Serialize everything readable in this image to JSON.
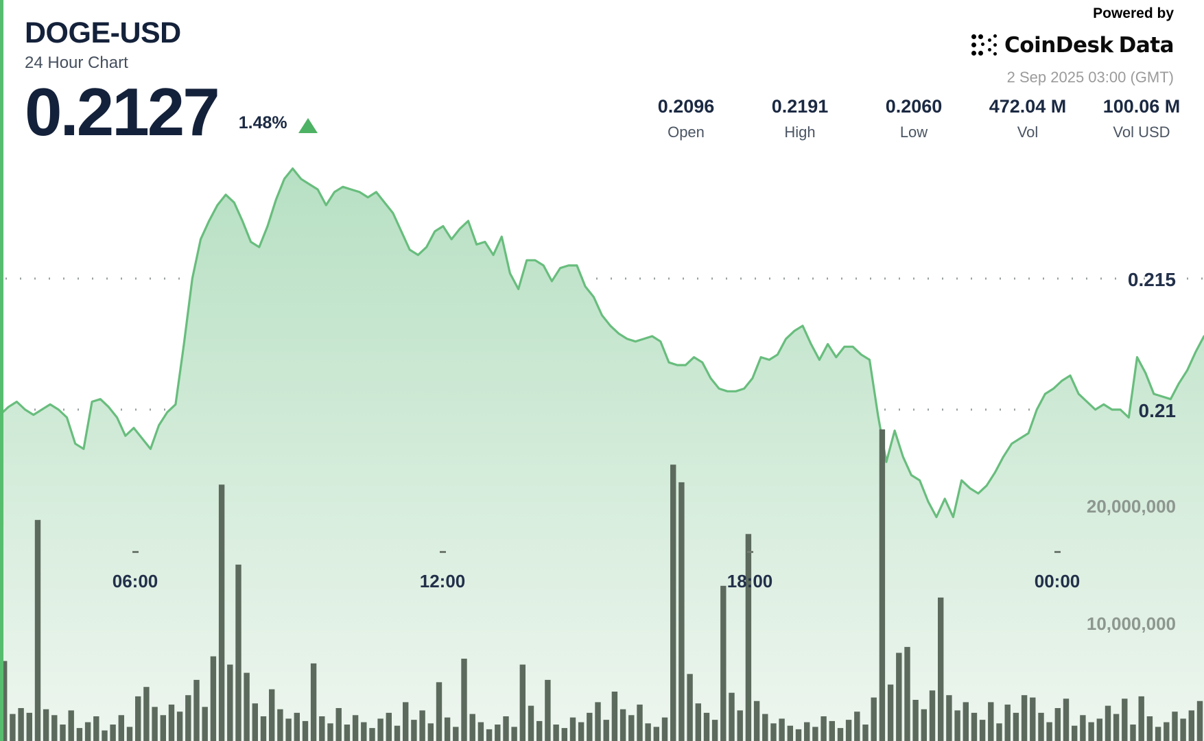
{
  "header": {
    "symbol": "DOGE-USD",
    "subtitle": "24 Hour Chart",
    "price": "0.2127",
    "change_percent": "1.48%"
  },
  "powered_by": {
    "label": "Powered by",
    "brand": "CoinDesk",
    "brand_suffix": "Data",
    "timestamp": "2 Sep 2025 03:00 (GMT)"
  },
  "stats": [
    {
      "value": "0.2096",
      "label": "Open"
    },
    {
      "value": "0.2191",
      "label": "High"
    },
    {
      "value": "0.2060",
      "label": "Low"
    },
    {
      "value": "472.04 M",
      "label": "Vol"
    },
    {
      "value": "100.06 M",
      "label": "Vol USD"
    }
  ],
  "chart_data": {
    "type": "area",
    "title": "DOGE-USD 24 Hour Chart",
    "x_axis": {
      "labels": [
        "06:00",
        "12:00",
        "18:00",
        "00:00"
      ]
    },
    "y_axis_price": {
      "tick_labels": [
        "0.215",
        "0.21"
      ],
      "tick_values": [
        0.215,
        0.21
      ]
    },
    "y_axis_volume": {
      "tick_labels": [
        "20,000,000",
        "10,000,000"
      ],
      "tick_values": [
        20000000,
        10000000
      ]
    },
    "series": [
      {
        "name": "price",
        "type": "area",
        "values": [
          0.2098,
          0.2101,
          0.2103,
          0.21,
          0.2098,
          0.21,
          0.2102,
          0.21,
          0.2097,
          0.2087,
          0.2085,
          0.2103,
          0.2104,
          0.2101,
          0.2097,
          0.209,
          0.2093,
          0.2089,
          0.2085,
          0.2094,
          0.2099,
          0.2102,
          0.2125,
          0.215,
          0.2165,
          0.2172,
          0.2178,
          0.2182,
          0.2179,
          0.2172,
          0.2164,
          0.2162,
          0.217,
          0.218,
          0.2188,
          0.2192,
          0.2188,
          0.2186,
          0.2184,
          0.2178,
          0.2183,
          0.2185,
          0.2184,
          0.2183,
          0.2181,
          0.2183,
          0.2179,
          0.2175,
          0.2168,
          0.2161,
          0.2159,
          0.2162,
          0.2168,
          0.217,
          0.2165,
          0.2169,
          0.2172,
          0.2163,
          0.2164,
          0.2159,
          0.2166,
          0.2152,
          0.2146,
          0.2157,
          0.2157,
          0.2155,
          0.2149,
          0.2154,
          0.2155,
          0.2155,
          0.2147,
          0.2143,
          0.2136,
          0.2132,
          0.2129,
          0.2127,
          0.2126,
          0.2127,
          0.2128,
          0.2126,
          0.2118,
          0.2117,
          0.2117,
          0.212,
          0.2118,
          0.2112,
          0.2108,
          0.2107,
          0.2107,
          0.2108,
          0.2112,
          0.212,
          0.2119,
          0.2121,
          0.2127,
          0.213,
          0.2132,
          0.2125,
          0.2119,
          0.2125,
          0.212,
          0.2124,
          0.2124,
          0.2121,
          0.2119,
          0.2098,
          0.208,
          0.2092,
          0.2082,
          0.2075,
          0.2073,
          0.2065,
          0.2059,
          0.2066,
          0.2059,
          0.2073,
          0.207,
          0.2068,
          0.2071,
          0.2076,
          0.2082,
          0.2087,
          0.2089,
          0.2091,
          0.21,
          0.2106,
          0.2108,
          0.2111,
          0.2113,
          0.2106,
          0.2103,
          0.21,
          0.2102,
          0.21,
          0.21,
          0.2097,
          0.212,
          0.2114,
          0.2106,
          0.2105,
          0.2104,
          0.211,
          0.2115,
          0.2122,
          0.2128
        ]
      },
      {
        "name": "volume",
        "type": "bar",
        "unit": "millions",
        "values": [
          6.8,
          2.3,
          2.8,
          2.4,
          18.8,
          2.7,
          2.2,
          1.4,
          2.6,
          1.1,
          1.6,
          2.1,
          0.9,
          1.4,
          2.2,
          1.2,
          3.8,
          4.6,
          2.9,
          2.2,
          3.1,
          2.5,
          3.9,
          5.2,
          2.9,
          7.2,
          21.8,
          6.5,
          15.0,
          5.8,
          3.2,
          2.1,
          4.4,
          2.7,
          1.9,
          2.4,
          1.7,
          6.6,
          2.1,
          1.5,
          2.8,
          1.4,
          2.2,
          1.6,
          1.1,
          1.9,
          2.4,
          1.3,
          3.3,
          1.8,
          2.6,
          1.5,
          5.0,
          2.0,
          1.2,
          7.0,
          2.3,
          1.6,
          1.0,
          1.4,
          2.1,
          1.2,
          6.5,
          3.0,
          1.7,
          5.2,
          1.4,
          1.1,
          2.0,
          1.6,
          2.4,
          3.3,
          1.8,
          4.2,
          2.7,
          2.2,
          3.1,
          1.5,
          1.2,
          2.0,
          23.5,
          22.0,
          5.7,
          3.2,
          2.4,
          1.8,
          13.2,
          4.1,
          2.6,
          17.6,
          3.4,
          2.3,
          1.5,
          1.9,
          1.3,
          1.0,
          1.6,
          1.2,
          2.1,
          1.7,
          1.1,
          1.8,
          2.5,
          1.4,
          3.7,
          26.5,
          4.8,
          7.5,
          8.0,
          3.5,
          2.7,
          4.3,
          12.2,
          3.9,
          2.6,
          3.3,
          2.4,
          1.8,
          3.3,
          1.5,
          3.1,
          2.4,
          3.9,
          3.7,
          2.4,
          1.6,
          2.8,
          3.6,
          1.3,
          2.2,
          1.6,
          1.9,
          3.0,
          2.3,
          3.6,
          1.4,
          3.8,
          2.1,
          1.2,
          1.6,
          2.5,
          1.9,
          2.6,
          3.4
        ]
      }
    ],
    "colors": {
      "line": "#68bd7d",
      "fill_top": "#b7e0c3",
      "fill_bottom": "#eef6ef",
      "volume_bar": "#5c6a5d",
      "accent": "#57bd6e",
      "up_indicator": "#4db263",
      "grid_dot_price": "#99a1a0",
      "grid_dot_volume": "#a8b1a8"
    }
  }
}
